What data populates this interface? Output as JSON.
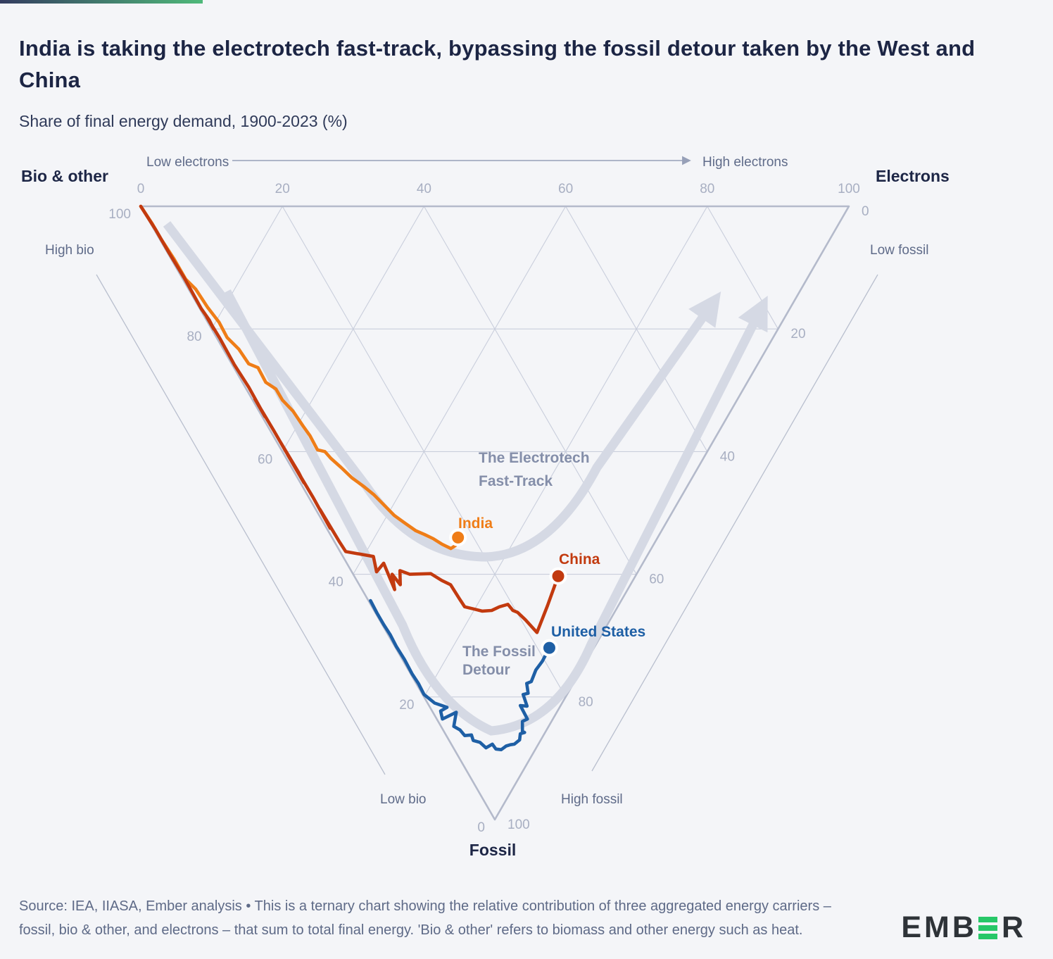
{
  "header": {
    "title": "India is taking the electrotech fast-track, bypassing the fossil detour taken by the West and China",
    "subtitle": "Share of final energy demand, 1900-2023 (%)"
  },
  "footer": {
    "note": "Source: IEA, IIASA, Ember analysis • This is a ternary chart showing the relative contribution of three aggregated energy carriers – fossil, bio & other, and electrons – that sum to total final energy. 'Bio & other' refers to biomass and other energy such as heat.",
    "logo_left": "EMB",
    "logo_right": "R"
  },
  "colors": {
    "background": "#f4f5f8",
    "title": "#1c2544",
    "grid": "#c9cedc",
    "edge": "#b4bacb",
    "band": "#d5d9e4",
    "tick": "#a8afc2",
    "direction_label": "#5f6b89",
    "annotation": "#848ea9",
    "india": "#ef7d17",
    "china": "#c23a0f",
    "united_states": "#1e5fa5",
    "logo_green": "#27c768"
  },
  "chart_data": {
    "type": "line",
    "variant": "ternary",
    "title": "Share of final energy demand, 1900-2023 (%)",
    "axes": {
      "bio": {
        "label": "Bio & other",
        "high": "High bio",
        "low": "Low bio",
        "ticks": [
          100,
          80,
          60,
          40,
          20,
          0
        ]
      },
      "electrons": {
        "label": "Electrons",
        "low": "Low electrons",
        "high": "High electrons",
        "ticks": [
          0,
          20,
          40,
          60,
          80,
          100
        ]
      },
      "fossil": {
        "label": "Fossil",
        "low": "Low fossil",
        "high": "High fossil",
        "ticks": [
          0,
          20,
          40,
          60,
          80,
          100
        ]
      }
    },
    "annotations": {
      "fast_track": [
        "The Electrotech",
        "Fast-Track"
      ],
      "fossil_detour": [
        "The Fossil",
        "Detour"
      ]
    },
    "legend_position": "inline-labels",
    "grid": true,
    "series": [
      {
        "name": "India",
        "color": "#ef7d17",
        "point_format": [
          "bio_pct",
          "electrons_pct",
          "fossil_pct"
        ],
        "points": [
          [
            100,
            0,
            0
          ],
          [
            97,
            0.2,
            2.8
          ],
          [
            94.4,
            0.2,
            5.4
          ],
          [
            91,
            0.4,
            8.6
          ],
          [
            87.7,
            0.4,
            11.9
          ],
          [
            85.5,
            1.0,
            13.5
          ],
          [
            82.3,
            1.2,
            16.5
          ],
          [
            79.5,
            1.6,
            18.9
          ],
          [
            77.1,
            1.5,
            21.4
          ],
          [
            74.5,
            2.2,
            23.3
          ],
          [
            71.9,
            2.4,
            25.7
          ],
          [
            70.3,
            3.4,
            26.3
          ],
          [
            68.0,
            3.3,
            28.7
          ],
          [
            66.0,
            4.2,
            29.8
          ],
          [
            64.2,
            4.2,
            31.6
          ],
          [
            61.8,
            4.8,
            33.4
          ],
          [
            59.2,
            5.0,
            35.8
          ],
          [
            57.4,
            5.2,
            37.4
          ],
          [
            55.2,
            5.1,
            39.7
          ],
          [
            54.0,
            6.0,
            40.0
          ],
          [
            52.6,
            6.3,
            41.1
          ],
          [
            50.4,
            7.0,
            42.6
          ],
          [
            48.0,
            7.7,
            44.3
          ],
          [
            45.8,
            8.6,
            45.6
          ],
          [
            43.6,
            9.4,
            47.0
          ],
          [
            41.3,
            10.0,
            48.7
          ],
          [
            39.0,
            10.6,
            50.4
          ],
          [
            36.8,
            11.5,
            51.7
          ],
          [
            34.7,
            12.4,
            52.9
          ],
          [
            33.2,
            13.3,
            53.5
          ],
          [
            31.6,
            14.2,
            54.2
          ],
          [
            29.9,
            15.0,
            55.1
          ],
          [
            28.3,
            15.9,
            55.8
          ],
          [
            27.9,
            16.8,
            55.3
          ],
          [
            28.2,
            17.8,
            54.0
          ]
        ]
      },
      {
        "name": "China",
        "color": "#c23a0f",
        "point_format": [
          "bio_pct",
          "electrons_pct",
          "fossil_pct"
        ],
        "points": [
          [
            100,
            0,
            0
          ],
          [
            96,
            0.2,
            3.8
          ],
          [
            92.2,
            0.2,
            7.6
          ],
          [
            88,
            0.3,
            11.7
          ],
          [
            83.1,
            0.2,
            16.7
          ],
          [
            81,
            0.4,
            18.6
          ],
          [
            79.7,
            0.3,
            20.0
          ],
          [
            81.7,
            0.3,
            18.0
          ],
          [
            78,
            0.4,
            21.6
          ],
          [
            73.9,
            0.3,
            25.8
          ],
          [
            70,
            0.5,
            29.5
          ],
          [
            65.3,
            0.4,
            34.3
          ],
          [
            68.2,
            0.4,
            31.4
          ],
          [
            63,
            0.5,
            36.5
          ],
          [
            58,
            0.5,
            41.5
          ],
          [
            61,
            0.5,
            38.5
          ],
          [
            56,
            0.6,
            43.4
          ],
          [
            54.4,
            0.5,
            45.1
          ],
          [
            59,
            0.5,
            40.5
          ],
          [
            52,
            0.6,
            47.4
          ],
          [
            47,
            0.5,
            52.5
          ],
          [
            50,
            0.6,
            49.4
          ],
          [
            44.5,
            0.7,
            54.8
          ],
          [
            42.9,
            0.8,
            56.3
          ],
          [
            38.6,
            4.3,
            57.1
          ],
          [
            36.9,
            3.5,
            59.6
          ],
          [
            36.6,
            5.2,
            58.2
          ],
          [
            32.9,
            4.6,
            62.5
          ],
          [
            34.5,
            5.5,
            60.0
          ],
          [
            32.5,
            5.8,
            61.7
          ],
          [
            33.7,
            6.9,
            59.4
          ],
          [
            32.0,
            8.0,
            60.0
          ],
          [
            29.1,
            11.0,
            59.9
          ],
          [
            27.0,
            12.0,
            61.0
          ],
          [
            25.4,
            12.9,
            61.7
          ],
          [
            23.0,
            13.0,
            64.0
          ],
          [
            21.6,
            13.1,
            65.3
          ],
          [
            20.0,
            14.3,
            65.7
          ],
          [
            18.8,
            15.2,
            66.0
          ],
          [
            17.5,
            16.6,
            65.9
          ],
          [
            16.7,
            18.0,
            65.3
          ],
          [
            15.7,
            19.4,
            64.9
          ],
          [
            14.5,
            19.6,
            65.9
          ],
          [
            13.7,
            20.1,
            66.2
          ],
          [
            12.0,
            20.6,
            67.4
          ],
          [
            9.3,
            21.2,
            69.5
          ],
          [
            10.0,
            24.9,
            65.1
          ],
          [
            10.9,
            28.8,
            60.3
          ]
        ]
      },
      {
        "name": "United States",
        "color": "#1e5fa5",
        "point_format": [
          "bio_pct",
          "electrons_pct",
          "fossil_pct"
        ],
        "points": [
          [
            35.4,
            0.3,
            64.3
          ],
          [
            33.5,
            0.2,
            66.3
          ],
          [
            31.6,
            0.2,
            68.2
          ],
          [
            29.8,
            0.3,
            69.9
          ],
          [
            28.0,
            0.2,
            71.8
          ],
          [
            25.8,
            0.3,
            73.9
          ],
          [
            23.6,
            0.2,
            76.2
          ],
          [
            21.9,
            0.3,
            77.8
          ],
          [
            20.2,
            0.2,
            79.6
          ],
          [
            18.0,
            1.0,
            81.0
          ],
          [
            15.9,
            2.4,
            81.7
          ],
          [
            16.5,
            1.2,
            82.3
          ],
          [
            15.6,
            0.8,
            83.6
          ],
          [
            14.2,
            3.3,
            82.5
          ],
          [
            13.4,
            1.8,
            84.8
          ],
          [
            12.2,
            2.4,
            85.4
          ],
          [
            11.1,
            2.6,
            86.3
          ],
          [
            10.2,
            3.6,
            86.2
          ],
          [
            9.5,
            3.4,
            87.1
          ],
          [
            8.4,
            4.2,
            87.4
          ],
          [
            7.1,
            4.6,
            88.3
          ],
          [
            6.5,
            5.8,
            87.7
          ],
          [
            5.6,
            5.9,
            88.5
          ],
          [
            4.8,
            6.6,
            88.6
          ],
          [
            4.4,
            7.6,
            88.0
          ],
          [
            3.9,
            8.3,
            87.8
          ],
          [
            3.4,
            8.9,
            87.7
          ],
          [
            3.0,
            10.0,
            87.0
          ],
          [
            3.4,
            10.6,
            86.0
          ],
          [
            2.9,
            11.3,
            85.8
          ],
          [
            3.3,
            11.1,
            85.6
          ],
          [
            4.1,
            11.9,
            84.0
          ],
          [
            3.6,
            12.8,
            83.6
          ],
          [
            5.7,
            12.9,
            81.4
          ],
          [
            4.7,
            13.8,
            81.5
          ],
          [
            6.2,
            14.2,
            79.6
          ],
          [
            5.6,
            15.0,
            79.4
          ],
          [
            6.6,
            15.6,
            77.8
          ],
          [
            6.1,
            16.4,
            77.5
          ],
          [
            6.4,
            18.0,
            75.6
          ],
          [
            6.2,
            19.6,
            74.2
          ],
          [
            6.3,
            21.7,
            72.0
          ]
        ]
      }
    ]
  }
}
